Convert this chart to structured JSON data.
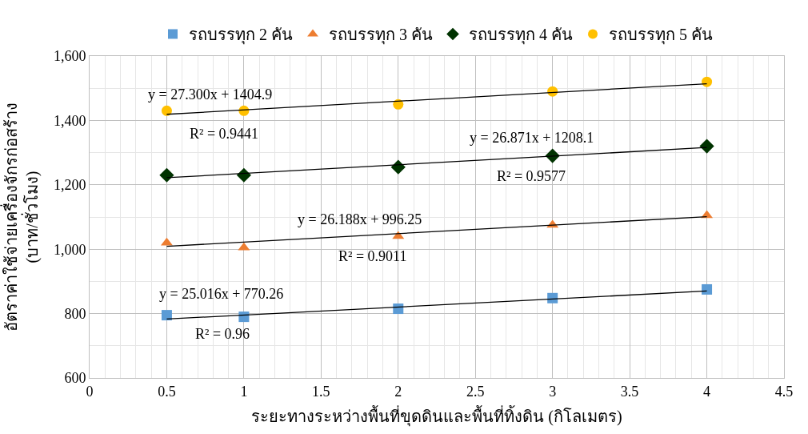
{
  "chart_data": {
    "type": "scatter",
    "xlabel": "ระยะทางระหว่างพื้นที่ขุดดินและพื้นที่ทิ้งดิน (กิโลเมตร)",
    "ylabel": "อัตราค่าใช้จ่ายเครื่องจักรก่อสร้าง\n(บาท/ชั่วโมง)",
    "x": [
      0.5,
      1,
      2,
      3,
      4
    ],
    "series": [
      {
        "name": "รถบรรทุก 2 คัน",
        "color": "#5b9bd5",
        "marker": "square",
        "values": [
          795,
          790,
          815,
          848,
          875
        ]
      },
      {
        "name": "รถบรรทุก 3 คัน",
        "color": "#ed7d31",
        "marker": "triangle",
        "values": [
          1020,
          1005,
          1040,
          1075,
          1105
        ]
      },
      {
        "name": "รถบรรทุก 4 คัน",
        "color": "#003300",
        "marker": "diamond",
        "values": [
          1230,
          1230,
          1255,
          1290,
          1320
        ]
      },
      {
        "name": "รถบรรทุก 5 คัน",
        "color": "#ffc000",
        "marker": "circle",
        "values": [
          1430,
          1430,
          1450,
          1490,
          1520
        ]
      },
      {
        "type": "line",
        "color": "#000000",
        "marker": "none",
        "values": [
          783,
          null,
          null,
          null,
          870
        ]
      },
      {
        "type": "line",
        "color": "#000000",
        "marker": "none",
        "values": [
          1009,
          null,
          null,
          null,
          1101
        ]
      },
      {
        "type": "line",
        "color": "#000000",
        "marker": "none",
        "values": [
          1222,
          null,
          null,
          null,
          1316
        ]
      },
      {
        "type": "line",
        "color": "#000000",
        "marker": "none",
        "values": [
          1419,
          null,
          null,
          null,
          1514
        ]
      }
    ],
    "annotations": [
      "y = 27.300x + 1404.9",
      "R² = 0.9441",
      "y = 26.871x + 1208.1",
      "R² = 0.9577",
      "y = 26.188x + 996.25",
      "R² = 0.9011",
      "y = 25.016x + 770.26",
      "R² = 0.96"
    ],
    "xlim": [
      0,
      4.5
    ],
    "xticks": [
      0,
      {
        "value": 0.1,
        "label": null
      },
      {
        "value": 0.2,
        "label": null
      },
      {
        "value": 0.3,
        "label": null
      },
      {
        "value": 0.4,
        "label": null
      },
      0.5,
      {
        "value": 0.6,
        "label": null
      },
      {
        "value": 0.7,
        "label": null
      },
      {
        "value": 0.8,
        "label": null
      },
      {
        "value": 0.9,
        "label": null
      },
      1,
      {
        "value": 1.1,
        "label": null
      },
      {
        "value": 1.2,
        "label": null
      },
      {
        "value": 1.3,
        "label": null
      },
      {
        "value": 1.4,
        "label": null
      },
      1.5,
      {
        "value": 1.6,
        "label": null
      },
      {
        "value": 1.7,
        "label": null
      },
      {
        "value": 1.8,
        "label": null
      },
      {
        "value": 1.9,
        "label": null
      },
      2,
      {
        "value": 2.1,
        "label": null
      },
      {
        "value": 2.2,
        "label": null
      },
      {
        "value": 2.3,
        "label": null
      },
      {
        "value": 2.4,
        "label": null
      },
      2.5,
      {
        "value": 2.6,
        "label": null
      },
      {
        "value": 2.7,
        "label": null
      },
      {
        "value": 2.8,
        "label": null
      },
      {
        "value": 2.9,
        "label": null
      },
      3,
      {
        "value": 3.1,
        "label": null
      },
      {
        "value": 3.2,
        "label": null
      },
      {
        "value": 3.3,
        "label": null
      },
      {
        "value": 3.4,
        "label": null
      },
      3.5,
      {
        "value": 3.6,
        "label": null
      },
      {
        "value": 3.7,
        "label": null
      },
      {
        "value": 3.8,
        "label": null
      },
      {
        "value": 3.9,
        "label": null
      },
      4,
      {
        "value": 4.1,
        "label": null
      },
      {
        "value": 4.2,
        "label": null
      },
      {
        "value": 4.3,
        "label": null
      },
      {
        "value": 4.4,
        "label": null
      },
      4.5
    ],
    "ylim": [
      600,
      1600
    ],
    "yticks": [
      600,
      {
        "value": 700,
        "label": null
      },
      800,
      {
        "value": 900,
        "label": null
      },
      {
        "value": 1000,
        "label": "1,000"
      },
      {
        "value": 1100,
        "label": null
      },
      {
        "value": 1200,
        "label": "1,200"
      },
      {
        "value": 1300,
        "label": null
      },
      {
        "value": 1400,
        "label": "1,400"
      },
      {
        "value": 1500,
        "label": null
      },
      {
        "value": 1600,
        "label": "1,600"
      }
    ],
    "grid": true,
    "legend": "top"
  }
}
